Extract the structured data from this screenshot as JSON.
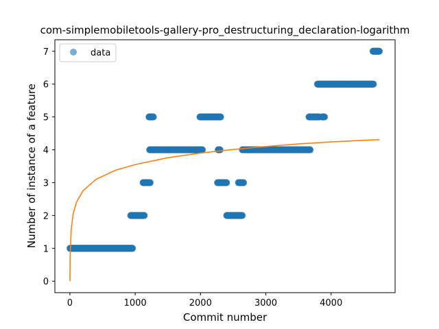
{
  "chart_data": {
    "type": "scatter",
    "title": "com-simplemobiletools-gallery-pro_destructuring_declaration-logarithm",
    "xlabel": "Commit number",
    "ylabel": "Number of instance of a feature",
    "xlim": [
      -230,
      4980
    ],
    "ylim": [
      -0.35,
      7.35
    ],
    "xticks": [
      0,
      1000,
      2000,
      3000,
      4000
    ],
    "yticks": [
      0,
      1,
      2,
      3,
      4,
      5,
      6,
      7
    ],
    "grid": false,
    "legend": {
      "position": "top-left",
      "entries": [
        "data"
      ]
    },
    "colors": {
      "data": "#1f77b4",
      "fit": "#ff7f0e"
    },
    "series": [
      {
        "name": "data",
        "kind": "scatter",
        "segments": [
          {
            "x_start": 0,
            "x_end": 960,
            "y": 1
          },
          {
            "x_start": 930,
            "x_end": 1140,
            "y": 2
          },
          {
            "x_start": 1120,
            "x_end": 1230,
            "y": 3
          },
          {
            "x_start": 1220,
            "x_end": 1290,
            "y": 4
          },
          {
            "x_start": 1210,
            "x_end": 1280,
            "y": 5
          },
          {
            "x_start": 1290,
            "x_end": 2030,
            "y": 4
          },
          {
            "x_start": 1990,
            "x_end": 2310,
            "y": 5
          },
          {
            "x_start": 2270,
            "x_end": 2300,
            "y": 4
          },
          {
            "x_start": 2260,
            "x_end": 2400,
            "y": 3
          },
          {
            "x_start": 2400,
            "x_end": 2640,
            "y": 2
          },
          {
            "x_start": 2580,
            "x_end": 2660,
            "y": 3
          },
          {
            "x_start": 2640,
            "x_end": 3680,
            "y": 4
          },
          {
            "x_start": 3660,
            "x_end": 3820,
            "y": 5
          },
          {
            "x_start": 3860,
            "x_end": 3900,
            "y": 5
          },
          {
            "x_start": 3790,
            "x_end": 4650,
            "y": 6
          },
          {
            "x_start": 4640,
            "x_end": 4740,
            "y": 7
          }
        ]
      },
      {
        "name": "fit",
        "kind": "line",
        "model": "logarithmic",
        "x_range": [
          0,
          4740
        ],
        "points": [
          [
            0,
            0.0
          ],
          [
            5,
            0.85
          ],
          [
            20,
            1.55
          ],
          [
            50,
            2.05
          ],
          [
            100,
            2.4
          ],
          [
            200,
            2.75
          ],
          [
            400,
            3.1
          ],
          [
            700,
            3.38
          ],
          [
            1000,
            3.55
          ],
          [
            1500,
            3.76
          ],
          [
            2000,
            3.9
          ],
          [
            2500,
            4.01
          ],
          [
            3000,
            4.1
          ],
          [
            3500,
            4.18
          ],
          [
            4000,
            4.24
          ],
          [
            4500,
            4.29
          ],
          [
            4740,
            4.31
          ]
        ]
      }
    ]
  }
}
